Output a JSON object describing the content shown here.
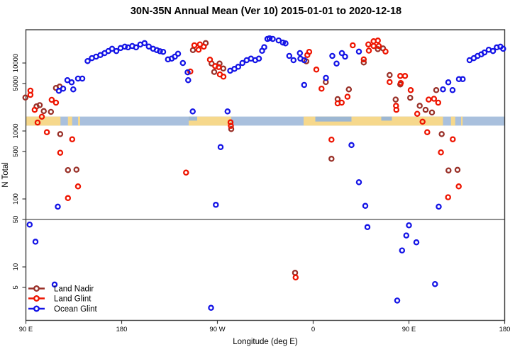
{
  "title": "30N-35N Annual Mean (Ver 10)   2015-01-01 to 2020-12-18",
  "x_axis": {
    "label": "Longitude (deg E)",
    "range_deg": [
      90,
      540
    ],
    "ticks": [
      {
        "deg": 90,
        "text": "90 E"
      },
      {
        "deg": 180,
        "text": "180"
      },
      {
        "deg": 270,
        "text": "90 W"
      },
      {
        "deg": 360,
        "text": "0"
      },
      {
        "deg": 450,
        "text": "90 E"
      },
      {
        "deg": 540,
        "text": "180"
      }
    ]
  },
  "y_axis": {
    "label": "N Total",
    "scale": "log10",
    "ticks": [
      {
        "value": 5,
        "text": "5"
      },
      {
        "value": 10,
        "text": "10"
      },
      {
        "value": 50,
        "text": "50"
      },
      {
        "value": 100,
        "text": "100"
      },
      {
        "value": 500,
        "text": "500"
      },
      {
        "value": 1000,
        "text": "1000"
      },
      {
        "value": 5000,
        "text": "5000"
      },
      {
        "value": 10000,
        "text": "10000"
      }
    ],
    "range": [
      1.9,
      31000
    ]
  },
  "reference_line": {
    "value": 50,
    "color": "#7f7f7f"
  },
  "map_band": {
    "value_range": [
      1200,
      1630
    ],
    "ocean_color": "#a9c0dd",
    "land_color": "#f6d88c",
    "sea_overlay_color": "#9db7d2",
    "land_segments_deg": [
      [
        90,
        122.5
      ],
      [
        129.5,
        133.5
      ],
      [
        139,
        141
      ],
      [
        243,
        283
      ],
      [
        351,
        482
      ],
      [
        489.5,
        493.5
      ],
      [
        499,
        500.5
      ]
    ],
    "sea_overlays": [
      {
        "deg": [
          362,
          396
        ],
        "frac": [
          0,
          0.55
        ]
      },
      {
        "deg": [
          424,
          434
        ],
        "frac": [
          0,
          0.45
        ]
      },
      {
        "deg": [
          243,
          251
        ],
        "frac": [
          0,
          0.45
        ]
      }
    ]
  },
  "legend": {
    "items": [
      {
        "label": "Land Nadir",
        "color": "#993028"
      },
      {
        "label": "Land Glint",
        "color": "#ee1400"
      },
      {
        "label": "Ocean Glint",
        "color": "#1414e6"
      }
    ]
  },
  "chart_data": {
    "type": "scatter",
    "title": "30N-35N Annual Mean (Ver 10)   2015-01-01 to 2020-12-18",
    "xlabel": "Longitude (deg E)",
    "ylabel": "N Total",
    "x_unit": "degrees east of Greenwich, axis wraps 90E..180..90W..0..90E..180 (90..540)",
    "y_scale": "log10",
    "series": [
      {
        "name": "Land Nadir",
        "color": "#993028",
        "points": [
          [
            89.5,
            3100
          ],
          [
            100,
            2300
          ],
          [
            103,
            2400
          ],
          [
            106.8,
            1960
          ],
          [
            113.5,
            1910
          ],
          [
            118.3,
            4300
          ],
          [
            121.7,
            4500
          ],
          [
            122.3,
            900
          ],
          [
            129.5,
            266
          ],
          [
            137.5,
            270
          ],
          [
            247,
            15500
          ],
          [
            259,
            19600
          ],
          [
            264.5,
            9800
          ],
          [
            267,
            7400
          ],
          [
            272,
            9800
          ],
          [
            275.5,
            8300
          ],
          [
            283,
            1070
          ],
          [
            343,
            8.2
          ],
          [
            353.5,
            10600
          ],
          [
            371.9,
            5240
          ],
          [
            377.2,
            390
          ],
          [
            383,
            2940
          ],
          [
            393.5,
            4100
          ],
          [
            407.5,
            10200
          ],
          [
            420.8,
            16000
          ],
          [
            425.7,
            16400
          ],
          [
            431.9,
            6650
          ],
          [
            437.5,
            2900
          ],
          [
            441.9,
            4840
          ],
          [
            451.2,
            3080
          ],
          [
            460.1,
            2350
          ],
          [
            465.7,
            2050
          ],
          [
            471.7,
            1870
          ],
          [
            475.7,
            3990
          ],
          [
            480.8,
            900
          ],
          [
            487.2,
            263
          ],
          [
            495.7,
            268
          ]
        ]
      },
      {
        "name": "Land Glint",
        "color": "#ee1400",
        "points": [
          [
            94.3,
            3920
          ],
          [
            94.3,
            3400
          ],
          [
            98.3,
            2050
          ],
          [
            101,
            1330
          ],
          [
            105,
            1620
          ],
          [
            109.7,
            960
          ],
          [
            114.3,
            2870
          ],
          [
            118.3,
            2610
          ],
          [
            122.3,
            479
          ],
          [
            129.5,
            103
          ],
          [
            133.5,
            755
          ],
          [
            139,
            153
          ],
          [
            240.5,
            244
          ],
          [
            244.5,
            7500
          ],
          [
            248.3,
            18200
          ],
          [
            252.3,
            15700
          ],
          [
            253.5,
            18800
          ],
          [
            257.2,
            17400
          ],
          [
            263,
            11200
          ],
          [
            267.9,
            9000
          ],
          [
            271.2,
            8700
          ],
          [
            272.3,
            6800
          ],
          [
            275.7,
            6300
          ],
          [
            282.3,
            1340
          ],
          [
            282.7,
            1190
          ],
          [
            343.5,
            7.0
          ],
          [
            354.5,
            13100
          ],
          [
            356.3,
            14600
          ],
          [
            363,
            8000
          ],
          [
            367.9,
            4200
          ],
          [
            377.2,
            746
          ],
          [
            383,
            2550
          ],
          [
            386.8,
            2610
          ],
          [
            392.3,
            3190
          ],
          [
            397.2,
            18200
          ],
          [
            407.5,
            11300
          ],
          [
            411.9,
            18800
          ],
          [
            412.3,
            15200
          ],
          [
            416.8,
            20900
          ],
          [
            416.8,
            17800
          ],
          [
            420.8,
            21400
          ],
          [
            421.7,
            17800
          ],
          [
            428,
            14800
          ],
          [
            437.9,
            2350
          ],
          [
            438.2,
            2050
          ],
          [
            431.9,
            5240
          ],
          [
            441.9,
            6450
          ],
          [
            442.3,
            5080
          ],
          [
            446.3,
            6450
          ],
          [
            451.7,
            3990
          ],
          [
            457.8,
            1790
          ],
          [
            462.8,
            1370
          ],
          [
            467.2,
            960
          ],
          [
            468.5,
            2900
          ],
          [
            473.5,
            2980
          ],
          [
            477.5,
            2610
          ],
          [
            480.1,
            485
          ],
          [
            486.8,
            106
          ],
          [
            491.2,
            755
          ],
          [
            496.8,
            153
          ]
        ]
      },
      {
        "name": "Ocean Glint",
        "color": "#1414e6",
        "points": [
          [
            93.5,
            42
          ],
          [
            99,
            23.5
          ],
          [
            117,
            5.5
          ],
          [
            120,
            77
          ],
          [
            121,
            3900
          ],
          [
            125,
            4200
          ],
          [
            129,
            5600
          ],
          [
            133,
            5200
          ],
          [
            134.5,
            4100
          ],
          [
            139,
            5900
          ],
          [
            143,
            5900
          ],
          [
            148,
            10700
          ],
          [
            152,
            11800
          ],
          [
            156,
            12400
          ],
          [
            160,
            13100
          ],
          [
            164,
            14000
          ],
          [
            167.5,
            15000
          ],
          [
            171,
            16200
          ],
          [
            175,
            15000
          ],
          [
            179,
            16600
          ],
          [
            183,
            17400
          ],
          [
            186,
            17000
          ],
          [
            190,
            17800
          ],
          [
            193.5,
            17000
          ],
          [
            197.5,
            18700
          ],
          [
            201.5,
            19600
          ],
          [
            205.5,
            17500
          ],
          [
            209.5,
            16200
          ],
          [
            213,
            15500
          ],
          [
            216,
            14900
          ],
          [
            219,
            14600
          ],
          [
            223.5,
            11300
          ],
          [
            227,
            11600
          ],
          [
            230,
            12400
          ],
          [
            233,
            13700
          ],
          [
            237.5,
            10000
          ],
          [
            242,
            7300
          ],
          [
            242.5,
            5600
          ],
          [
            246.8,
            1940
          ],
          [
            264,
            2.5
          ],
          [
            268.5,
            82
          ],
          [
            273,
            580
          ],
          [
            279.5,
            1940
          ],
          [
            282,
            7700
          ],
          [
            286,
            8200
          ],
          [
            289.5,
            8800
          ],
          [
            293.5,
            10000
          ],
          [
            297.5,
            11000
          ],
          [
            301.5,
            11600
          ],
          [
            305.5,
            11000
          ],
          [
            309,
            11600
          ],
          [
            312,
            15100
          ],
          [
            314,
            17100
          ],
          [
            317,
            22600
          ],
          [
            319,
            23100
          ],
          [
            322,
            22600
          ],
          [
            327.5,
            21500
          ],
          [
            331.5,
            20000
          ],
          [
            334,
            19500
          ],
          [
            337.5,
            12700
          ],
          [
            341.5,
            11000
          ],
          [
            347.5,
            14000
          ],
          [
            348,
            11600
          ],
          [
            351.5,
            11000
          ],
          [
            351.5,
            4750
          ],
          [
            372,
            6050
          ],
          [
            378,
            12700
          ],
          [
            382,
            9800
          ],
          [
            387,
            14000
          ],
          [
            390,
            12400
          ],
          [
            396,
            620
          ],
          [
            403,
            14700
          ],
          [
            403,
            176
          ],
          [
            409,
            79
          ],
          [
            411,
            38.5
          ],
          [
            439,
            3.2
          ],
          [
            443.5,
            17.5
          ],
          [
            447.5,
            29
          ],
          [
            450,
            41
          ],
          [
            457,
            23
          ],
          [
            474.5,
            5.6
          ],
          [
            478,
            77
          ],
          [
            482,
            4100
          ],
          [
            487,
            5200
          ],
          [
            491,
            4000
          ],
          [
            497,
            5800
          ],
          [
            500.5,
            5800
          ],
          [
            507,
            11000
          ],
          [
            511,
            11800
          ],
          [
            514.5,
            12700
          ],
          [
            518,
            13400
          ],
          [
            521,
            14300
          ],
          [
            525,
            15700
          ],
          [
            529,
            15000
          ],
          [
            532.5,
            17000
          ],
          [
            536,
            17400
          ],
          [
            538.5,
            16200
          ]
        ]
      }
    ]
  }
}
